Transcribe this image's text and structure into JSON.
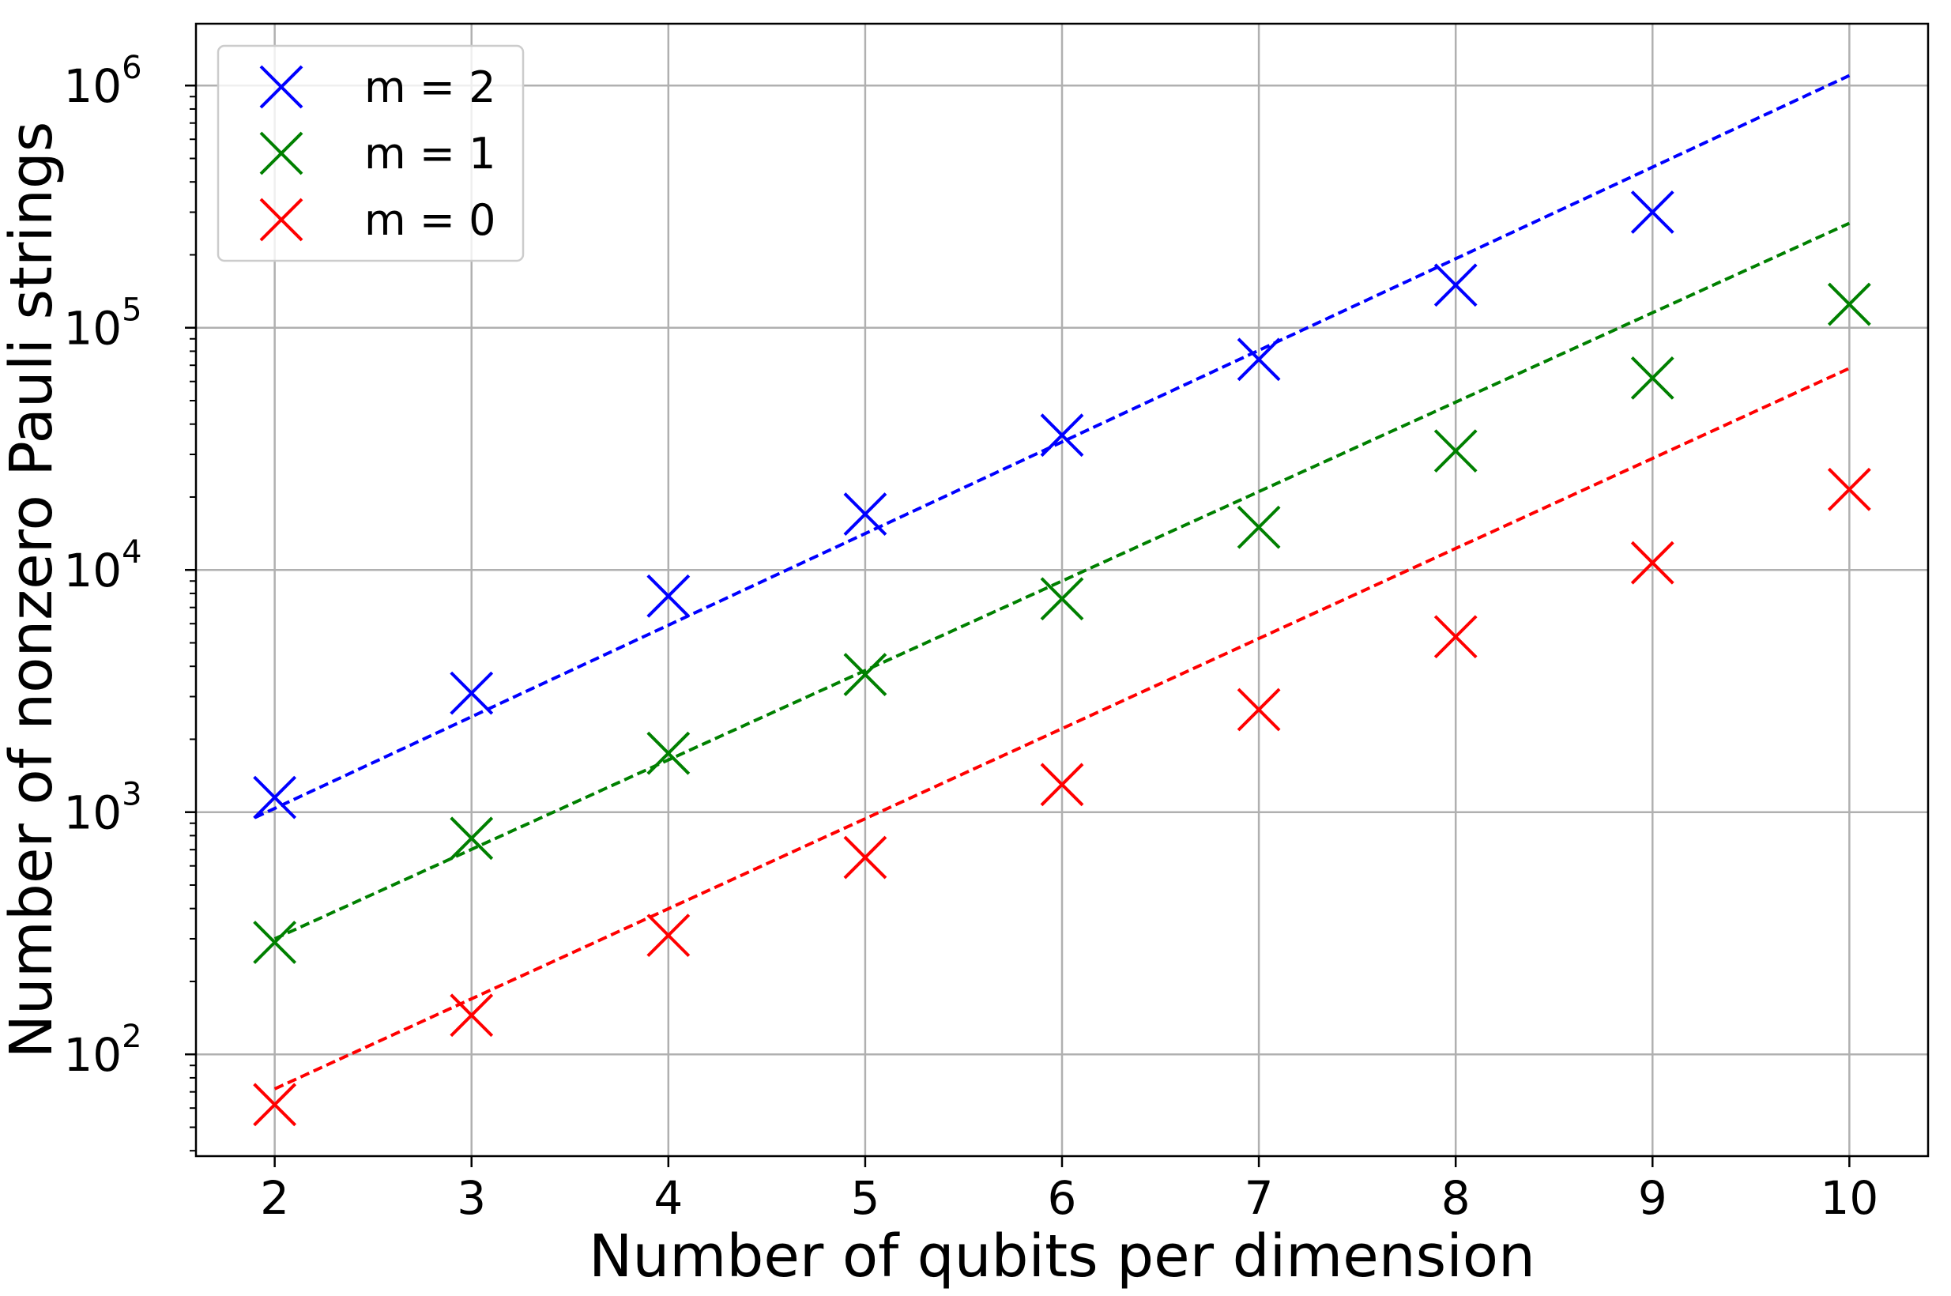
{
  "chart_data": {
    "type": "scatter",
    "xlabel": "Number of qubits per dimension",
    "ylabel": "Number of nonzero Pauli strings",
    "x": [
      2,
      3,
      4,
      5,
      6,
      7,
      8,
      9,
      10
    ],
    "xlim": [
      1.6,
      10.4
    ],
    "ylim": [
      38,
      1800000
    ],
    "yscale": "log",
    "grid": true,
    "legend_position": "top-left",
    "x_ticks": [
      "2",
      "3",
      "4",
      "5",
      "6",
      "7",
      "8",
      "9",
      "10"
    ],
    "y_ticks": [
      {
        "value": 100,
        "base": "10",
        "exp": "2"
      },
      {
        "value": 1000,
        "base": "10",
        "exp": "3"
      },
      {
        "value": 10000,
        "base": "10",
        "exp": "4"
      },
      {
        "value": 100000,
        "base": "10",
        "exp": "5"
      },
      {
        "value": 1000000,
        "base": "10",
        "exp": "6"
      }
    ],
    "series": [
      {
        "name": "m = 2",
        "color": "#0000ff",
        "points": [
          {
            "x": 2,
            "y": 1150
          },
          {
            "x": 3,
            "y": 3100
          },
          {
            "x": 4,
            "y": 7800
          },
          {
            "x": 5,
            "y": 17000
          },
          {
            "x": 6,
            "y": 36000
          },
          {
            "x": 7,
            "y": 74000
          },
          {
            "x": 8,
            "y": 150000
          },
          {
            "x": 9,
            "y": 300000
          }
        ],
        "fit": [
          {
            "x": 1.9,
            "y": 950
          },
          {
            "x": 10,
            "y": 1100000
          }
        ]
      },
      {
        "name": "m = 1",
        "color": "#008000",
        "points": [
          {
            "x": 2,
            "y": 290
          },
          {
            "x": 3,
            "y": 780
          },
          {
            "x": 4,
            "y": 1750
          },
          {
            "x": 5,
            "y": 3700
          },
          {
            "x": 6,
            "y": 7600
          },
          {
            "x": 7,
            "y": 15000
          },
          {
            "x": 8,
            "y": 31000
          },
          {
            "x": 9,
            "y": 62000
          },
          {
            "x": 10,
            "y": 125000
          }
        ],
        "fit": [
          {
            "x": 2,
            "y": 300
          },
          {
            "x": 10,
            "y": 270000
          }
        ]
      },
      {
        "name": "m = 0",
        "color": "#ff0000",
        "points": [
          {
            "x": 2,
            "y": 62
          },
          {
            "x": 3,
            "y": 145
          },
          {
            "x": 4,
            "y": 310
          },
          {
            "x": 5,
            "y": 650
          },
          {
            "x": 6,
            "y": 1300
          },
          {
            "x": 7,
            "y": 2650
          },
          {
            "x": 8,
            "y": 5300
          },
          {
            "x": 9,
            "y": 10700
          },
          {
            "x": 10,
            "y": 21500
          }
        ],
        "fit": [
          {
            "x": 2,
            "y": 72
          },
          {
            "x": 10,
            "y": 68000
          }
        ]
      }
    ]
  }
}
